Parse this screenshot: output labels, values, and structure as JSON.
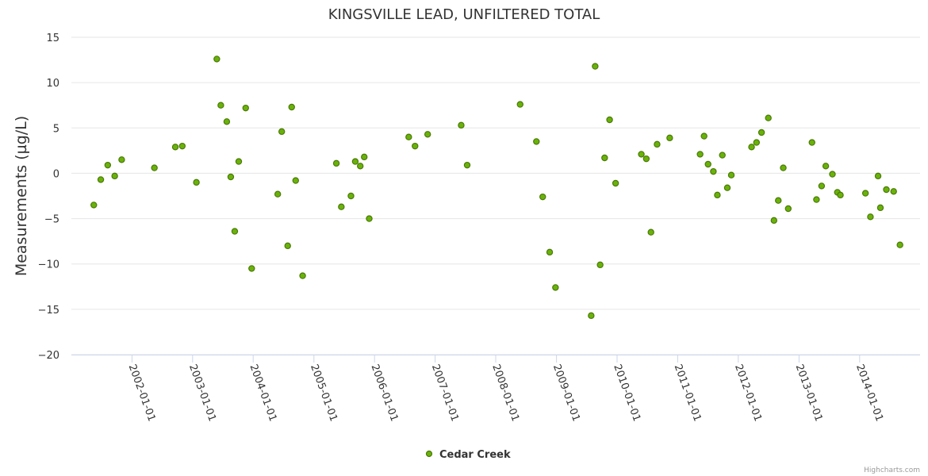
{
  "chart_data": {
    "type": "scatter",
    "title": "KINGSVILLE LEAD, UNFILTERED TOTAL",
    "xlabel": "",
    "ylabel": "Measurements (µg/L)",
    "ylim": [
      -20,
      15
    ],
    "yticks": [
      15,
      10,
      5,
      0,
      -5,
      -10,
      -15,
      -20
    ],
    "xlim": [
      "2001-01-01",
      "2014-12-31"
    ],
    "xticks": [
      "2002-01-01",
      "2003-01-01",
      "2004-01-01",
      "2005-01-01",
      "2006-01-01",
      "2007-01-01",
      "2008-01-01",
      "2009-01-01",
      "2010-01-01",
      "2011-01-01",
      "2012-01-01",
      "2013-01-01",
      "2014-01-01"
    ],
    "grid": true,
    "legend_position": "bottom",
    "credit": "Highcharts.com",
    "colors": {
      "marker_fill": "#6ab20a",
      "marker_stroke": "#4a7a06",
      "grid": "#e6e6e6"
    },
    "series": [
      {
        "name": "Cedar Creek",
        "points": [
          [
            "2001-05-16",
            -3.5
          ],
          [
            "2001-06-27",
            -0.7
          ],
          [
            "2001-08-08",
            0.9
          ],
          [
            "2001-09-19",
            -0.3
          ],
          [
            "2001-10-31",
            1.5
          ],
          [
            "2002-05-16",
            0.6
          ],
          [
            "2002-09-19",
            2.9
          ],
          [
            "2002-10-31",
            3.0
          ],
          [
            "2003-01-24",
            -1.0
          ],
          [
            "2003-05-27",
            12.6
          ],
          [
            "2003-06-20",
            7.5
          ],
          [
            "2003-07-26",
            5.7
          ],
          [
            "2003-08-19",
            -0.4
          ],
          [
            "2003-09-12",
            -6.4
          ],
          [
            "2003-10-06",
            1.3
          ],
          [
            "2003-11-17",
            7.2
          ],
          [
            "2003-12-23",
            -10.5
          ],
          [
            "2004-05-28",
            -2.3
          ],
          [
            "2004-06-21",
            4.6
          ],
          [
            "2004-07-27",
            -8.0
          ],
          [
            "2004-08-20",
            7.3
          ],
          [
            "2004-09-13",
            -0.8
          ],
          [
            "2004-10-25",
            -11.3
          ],
          [
            "2005-05-16",
            1.1
          ],
          [
            "2005-06-15",
            -3.7
          ],
          [
            "2005-08-12",
            -2.5
          ],
          [
            "2005-09-07",
            1.3
          ],
          [
            "2005-10-07",
            0.8
          ],
          [
            "2005-10-31",
            1.8
          ],
          [
            "2005-11-30",
            -5.0
          ],
          [
            "2006-07-26",
            4.0
          ],
          [
            "2006-09-02",
            3.0
          ],
          [
            "2006-11-17",
            4.3
          ],
          [
            "2007-06-07",
            5.3
          ],
          [
            "2007-07-13",
            0.9
          ],
          [
            "2008-05-27",
            7.6
          ],
          [
            "2008-09-02",
            3.5
          ],
          [
            "2008-10-10",
            -2.6
          ],
          [
            "2008-11-21",
            -8.7
          ],
          [
            "2008-12-26",
            -12.6
          ],
          [
            "2009-07-29",
            -15.7
          ],
          [
            "2009-08-22",
            11.8
          ],
          [
            "2009-09-21",
            -10.1
          ],
          [
            "2009-10-18",
            1.7
          ],
          [
            "2009-11-17",
            5.9
          ],
          [
            "2009-12-23",
            -1.1
          ],
          [
            "2010-05-27",
            2.1
          ],
          [
            "2010-06-26",
            1.6
          ],
          [
            "2010-07-24",
            -6.5
          ],
          [
            "2010-08-30",
            3.2
          ],
          [
            "2010-11-14",
            3.9
          ],
          [
            "2011-05-16",
            2.1
          ],
          [
            "2011-06-09",
            4.1
          ],
          [
            "2011-07-03",
            1.0
          ],
          [
            "2011-08-04",
            0.2
          ],
          [
            "2011-08-28",
            -2.4
          ],
          [
            "2011-09-27",
            2.0
          ],
          [
            "2011-10-27",
            -1.6
          ],
          [
            "2011-11-20",
            -0.2
          ],
          [
            "2012-03-21",
            2.9
          ],
          [
            "2012-04-20",
            3.4
          ],
          [
            "2012-05-20",
            4.5
          ],
          [
            "2012-06-30",
            6.1
          ],
          [
            "2012-08-03",
            -5.2
          ],
          [
            "2012-08-29",
            -3.0
          ],
          [
            "2012-09-28",
            0.6
          ],
          [
            "2012-10-28",
            -3.9
          ],
          [
            "2013-03-20",
            3.4
          ],
          [
            "2013-04-16",
            -2.9
          ],
          [
            "2013-05-17",
            -1.4
          ],
          [
            "2013-06-11",
            0.8
          ],
          [
            "2013-07-21",
            -0.1
          ],
          [
            "2013-08-20",
            -2.1
          ],
          [
            "2013-09-07",
            -2.4
          ],
          [
            "2014-02-05",
            -2.2
          ],
          [
            "2014-03-07",
            -4.8
          ],
          [
            "2014-04-22",
            -0.3
          ],
          [
            "2014-05-06",
            -3.8
          ],
          [
            "2014-06-11",
            -1.8
          ],
          [
            "2014-07-25",
            -2.0
          ],
          [
            "2014-09-01",
            -7.9
          ]
        ]
      }
    ]
  }
}
